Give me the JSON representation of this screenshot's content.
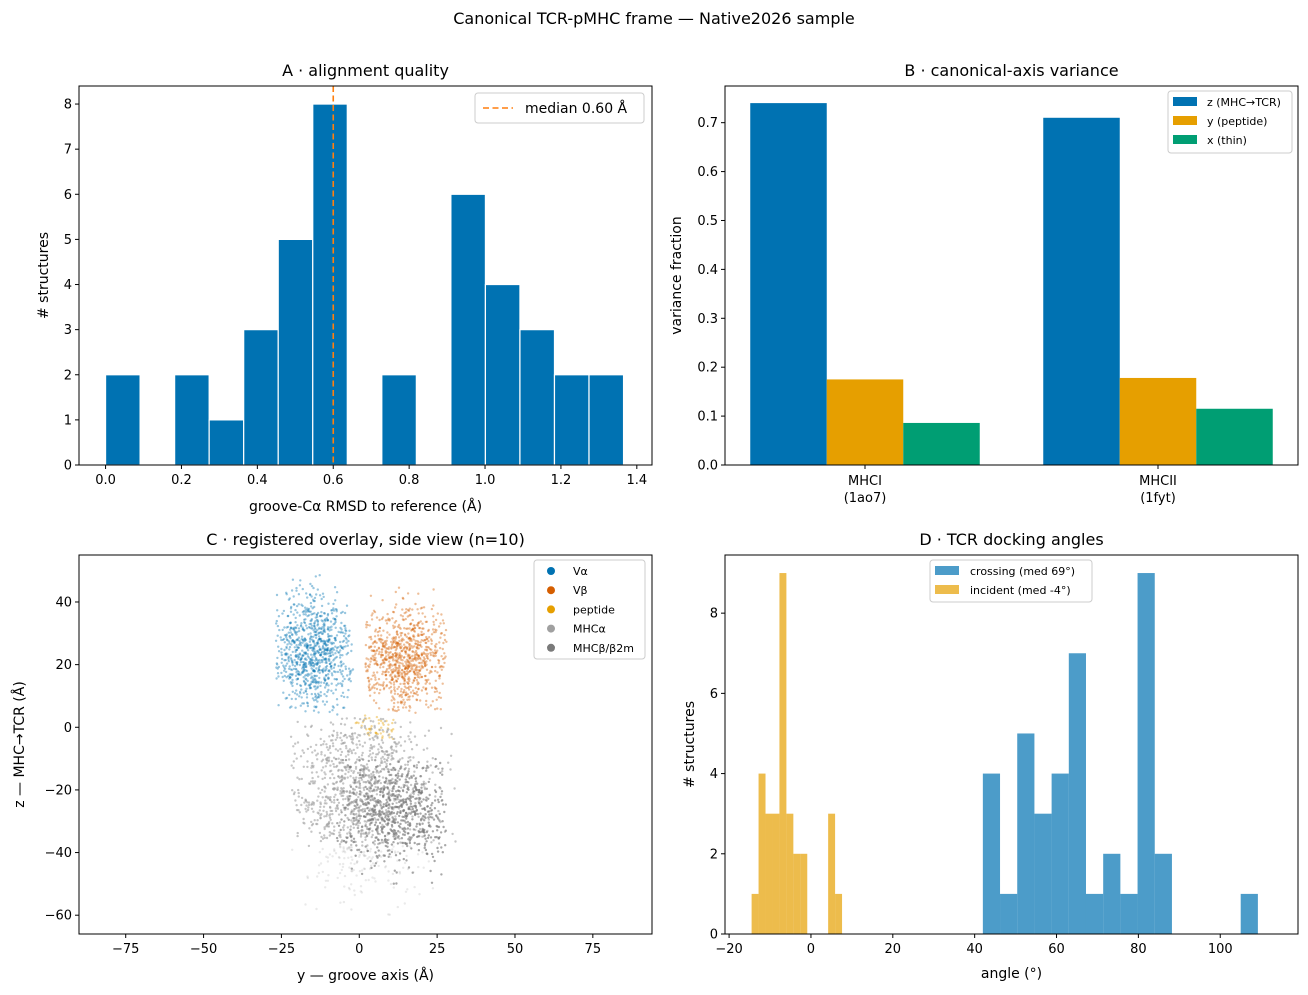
{
  "figure": {
    "suptitle": "Canonical TCR-pMHC frame — Native2026 sample"
  },
  "colors": {
    "blue": "#0072b2",
    "orange": "#e69f00",
    "green": "#009e73",
    "vermillion": "#d55e00",
    "median": "#ff7f0e",
    "mhca": "#a0a0a0",
    "mhcb": "#7a7a7a"
  },
  "chart_data": [
    {
      "panel": "A",
      "type": "bar",
      "title": "A · alignment quality",
      "xlabel": "groove-Cα RMSD to reference (Å)",
      "ylabel": "# structures",
      "xlim": [
        -0.07,
        1.44
      ],
      "ylim": [
        0,
        8.4
      ],
      "xticks": [
        "0.0",
        "0.2",
        "0.4",
        "0.6",
        "0.8",
        "1.0",
        "1.2",
        "1.4"
      ],
      "xtick_values": [
        0,
        0.2,
        0.4,
        0.6,
        0.8,
        1.0,
        1.2,
        1.4
      ],
      "yticks": [
        "0",
        "1",
        "2",
        "3",
        "4",
        "5",
        "6",
        "7",
        "8"
      ],
      "ytick_values": [
        0,
        1,
        2,
        3,
        4,
        5,
        6,
        7,
        8
      ],
      "bin_width": 0.091,
      "bins": [
        {
          "x0": 0.0,
          "count": 2
        },
        {
          "x0": 0.091,
          "count": 0
        },
        {
          "x0": 0.182,
          "count": 2
        },
        {
          "x0": 0.273,
          "count": 1
        },
        {
          "x0": 0.364,
          "count": 3
        },
        {
          "x0": 0.455,
          "count": 5
        },
        {
          "x0": 0.546,
          "count": 8
        },
        {
          "x0": 0.637,
          "count": 0
        },
        {
          "x0": 0.728,
          "count": 2
        },
        {
          "x0": 0.819,
          "count": 0
        },
        {
          "x0": 0.91,
          "count": 6
        },
        {
          "x0": 1.001,
          "count": 4
        },
        {
          "x0": 1.092,
          "count": 3
        },
        {
          "x0": 1.183,
          "count": 2
        },
        {
          "x0": 1.274,
          "count": 2
        }
      ],
      "median": 0.6,
      "legend": {
        "label": "median 0.60 Å",
        "placement": "top-right"
      }
    },
    {
      "panel": "B",
      "type": "bar",
      "title": "B · canonical-axis variance",
      "ylabel": "variance fraction",
      "ylim": [
        0,
        0.775
      ],
      "yticks": [
        "0.0",
        "0.1",
        "0.2",
        "0.3",
        "0.4",
        "0.5",
        "0.6",
        "0.7"
      ],
      "ytick_values": [
        0,
        0.1,
        0.2,
        0.3,
        0.4,
        0.5,
        0.6,
        0.7
      ],
      "categories": [
        {
          "line1": "MHCI",
          "line2": "(1ao7)"
        },
        {
          "line1": "MHCII",
          "line2": "(1fyt)"
        }
      ],
      "series": [
        {
          "name": "z (MHC→TCR)",
          "color": "#0072b2",
          "values": [
            0.74,
            0.71
          ]
        },
        {
          "name": "y (peptide)",
          "color": "#e69f00",
          "values": [
            0.175,
            0.178
          ]
        },
        {
          "name": "x (thin)",
          "color": "#009e73",
          "values": [
            0.086,
            0.115
          ]
        }
      ],
      "legend_placement": "top-right"
    },
    {
      "panel": "C",
      "type": "scatter",
      "title": "C · registered overlay, side view (n=10)",
      "xlabel": "y — groove axis (Å)",
      "ylabel": "z — MHC→TCR (Å)",
      "xlim": [
        -90,
        94
      ],
      "ylim": [
        -66,
        55
      ],
      "xticks": [
        "−75",
        "−50",
        "−25",
        "0",
        "25",
        "50",
        "75"
      ],
      "xtick_values": [
        -75,
        -50,
        -25,
        0,
        25,
        50,
        75
      ],
      "yticks": [
        "−60",
        "−40",
        "−20",
        "0",
        "20",
        "40"
      ],
      "ytick_values": [
        -60,
        -40,
        -20,
        0,
        20,
        40
      ],
      "clusters": [
        {
          "name": "Vα",
          "color": "#0072b2",
          "count": 900,
          "center": [
            -15,
            24
          ],
          "spread": [
            7,
            9
          ],
          "range": [
            [
              -27,
              -2
            ],
            [
              4,
              49
            ]
          ]
        },
        {
          "name": "Vβ",
          "color": "#d55e00",
          "count": 850,
          "center": [
            14,
            22
          ],
          "spread": [
            7,
            8
          ],
          "range": [
            [
              2,
              28
            ],
            [
              4,
              45
            ]
          ]
        },
        {
          "name": "peptide",
          "color": "#e69f00",
          "count": 45,
          "center": [
            5,
            0
          ],
          "spread": [
            5,
            2
          ],
          "range": [
            [
              -2,
              12
            ],
            [
              -4,
              4
            ]
          ]
        },
        {
          "name": "MHCα",
          "color": "#a0a0a0",
          "count": 1100,
          "center": [
            0,
            -20
          ],
          "spread": [
            11,
            15
          ],
          "range": [
            [
              -22,
              31
            ],
            [
              -63,
              3
            ]
          ]
        },
        {
          "name": "MHCβ/β2m",
          "color": "#7a7a7a",
          "count": 650,
          "center": [
            12,
            -28
          ],
          "spread": [
            9,
            9
          ],
          "range": [
            [
              -8,
              28
            ],
            [
              -50,
              -10
            ]
          ]
        }
      ],
      "legend_placement": "top-right"
    },
    {
      "panel": "D",
      "type": "bar",
      "title": "D · TCR docking angles",
      "xlabel": "angle (°)",
      "ylabel": "# structures",
      "xlim": [
        -21,
        119
      ],
      "ylim": [
        0,
        9.45
      ],
      "xticks": [
        "−20",
        "0",
        "20",
        "40",
        "60",
        "80",
        "100"
      ],
      "xtick_values": [
        -20,
        0,
        20,
        40,
        60,
        80,
        100
      ],
      "yticks": [
        "0",
        "2",
        "4",
        "6",
        "8"
      ],
      "ytick_values": [
        0,
        2,
        4,
        6,
        8
      ],
      "series": [
        {
          "name": "crossing (med 69°)",
          "color": "#0072b2",
          "bin_width": 4.2,
          "bins": [
            [
              42,
              4
            ],
            [
              46.2,
              1
            ],
            [
              50.4,
              5
            ],
            [
              54.6,
              3
            ],
            [
              58.8,
              4
            ],
            [
              63,
              7
            ],
            [
              67.2,
              1
            ],
            [
              71.4,
              2
            ],
            [
              75.6,
              1
            ],
            [
              79.8,
              9
            ],
            [
              84,
              2
            ],
            [
              88.2,
              0
            ],
            [
              92.4,
              0
            ],
            [
              96.6,
              0
            ],
            [
              100.8,
              0
            ],
            [
              105,
              1
            ]
          ]
        },
        {
          "name": "incident (med -4°)",
          "color": "#e69f00",
          "bin_width": 1.7,
          "bins": [
            [
              -14.5,
              1
            ],
            [
              -12.8,
              4
            ],
            [
              -11.1,
              3
            ],
            [
              -9.4,
              3
            ],
            [
              -7.7,
              9
            ],
            [
              -6,
              3
            ],
            [
              -4.3,
              2
            ],
            [
              -2.6,
              2
            ],
            [
              -0.9,
              0
            ],
            [
              0.8,
              0
            ],
            [
              2.5,
              0
            ],
            [
              4.2,
              3
            ],
            [
              5.9,
              1
            ]
          ]
        }
      ],
      "legend_placement": "top-center"
    }
  ]
}
